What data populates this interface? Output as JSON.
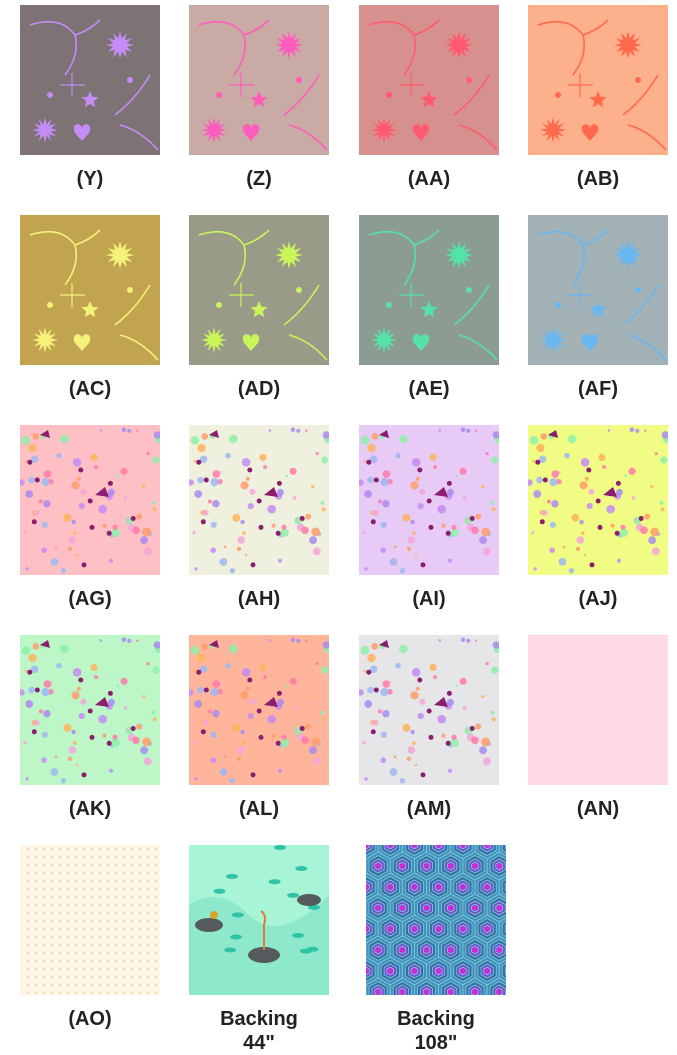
{
  "swatches": [
    {
      "label": "(Y)",
      "style": "bird",
      "bg": "#7d7274",
      "fg": "#c58bf6"
    },
    {
      "label": "(Z)",
      "style": "bird",
      "bg": "#c9aaa5",
      "fg": "#ff5dbd"
    },
    {
      "label": "(AA)",
      "style": "bird",
      "bg": "#d6918e",
      "fg": "#ff5a72"
    },
    {
      "label": "(AB)",
      "style": "bird",
      "bg": "#fdb08c",
      "fg": "#ff6a4c"
    },
    {
      "label": "(AC)",
      "style": "bird",
      "bg": "#c2a350",
      "fg": "#f4f279"
    },
    {
      "label": "(AD)",
      "style": "bird",
      "bg": "#999a88",
      "fg": "#c8f55a"
    },
    {
      "label": "(AE)",
      "style": "bird",
      "bg": "#8d9c92",
      "fg": "#55e2a8"
    },
    {
      "label": "(AF)",
      "style": "bird",
      "bg": "#a3b2b6",
      "fg": "#68b6f2"
    },
    {
      "label": "(AG)",
      "style": "dots",
      "bg": "#ffc0c5",
      "fg": "#8b1e6e"
    },
    {
      "label": "(AH)",
      "style": "dots",
      "bg": "#eff0dd",
      "fg": "#8b1e6e"
    },
    {
      "label": "(AI)",
      "style": "dots",
      "bg": "#e8caf7",
      "fg": "#8b1e6e"
    },
    {
      "label": "(AJ)",
      "style": "dots",
      "bg": "#f1fc84",
      "fg": "#8b1e6e"
    },
    {
      "label": "(AK)",
      "style": "dots",
      "bg": "#bdf7c8",
      "fg": "#8b1e6e"
    },
    {
      "label": "(AL)",
      "style": "dots",
      "bg": "#feb59b",
      "fg": "#8b1e6e"
    },
    {
      "label": "(AM)",
      "style": "dots",
      "bg": "#e6e5e7",
      "fg": "#8b1e6e"
    },
    {
      "label": "(AN)",
      "style": "plain",
      "bg": "#fed9e6",
      "fg": "#fed9e6"
    },
    {
      "label": "(AO)",
      "style": "pin",
      "bg": "#fcf6e3",
      "fg": "#e7bfa2"
    },
    {
      "label": "Backing 44\"",
      "line1": "Backing",
      "line2": "44\"",
      "style": "pond",
      "bg": "#a8f4d6",
      "fg": "#2fc3a7"
    },
    {
      "label": "Backing 108\"",
      "line1": "Backing",
      "line2": "108\"",
      "style": "hex",
      "bg": "#3f5d6f",
      "fg": "#c52fd3"
    }
  ]
}
